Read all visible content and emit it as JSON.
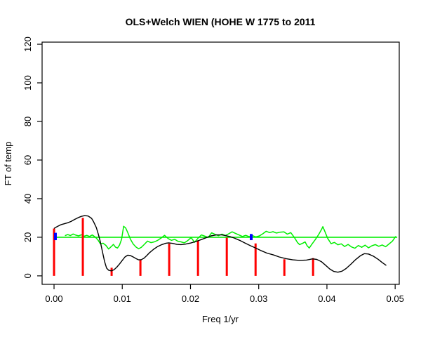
{
  "figure": {
    "background": "#ffffff"
  },
  "chart_data": {
    "type": "line",
    "title": "OLS+Welch WIEN (HOHE W 1775 to 2011",
    "xlabel": "Freq 1/yr",
    "ylabel": "FT of temp",
    "xlim": [
      -0.00175,
      0.0506
    ],
    "ylim": [
      -4.4,
      121.1
    ],
    "grid": false,
    "legend": null,
    "axis_color": "#000000",
    "x_ticks": {
      "values": [
        0,
        0.01,
        0.02,
        0.03,
        0.04,
        0.05
      ],
      "labels": [
        "0.00",
        "0.01",
        "0.02",
        "0.03",
        "0.04",
        "0.05"
      ]
    },
    "y_ticks": {
      "values": [
        0,
        20,
        40,
        60,
        80,
        100,
        120
      ],
      "labels": [
        "0",
        "20",
        "40",
        "60",
        "80",
        "100",
        "120"
      ]
    },
    "series": [
      {
        "name": "reference-level-line",
        "label": "constant level 20 (green)",
        "type": "line",
        "color": "#00EE00",
        "width": 1.6,
        "points": [
          [
            0.0,
            20.0
          ],
          [
            0.0503,
            20.0
          ]
        ]
      },
      {
        "name": "noise-spectrum-line",
        "label": "noisy green spectrum",
        "type": "line",
        "color": "#00EE00",
        "width": 1.5,
        "points": [
          [
            0.0016,
            20.8
          ],
          [
            0.002,
            21.4
          ],
          [
            0.0024,
            20.9
          ],
          [
            0.0028,
            21.7
          ],
          [
            0.0032,
            21.1
          ],
          [
            0.0036,
            20.7
          ],
          [
            0.004,
            21.3
          ],
          [
            0.0044,
            20.5
          ],
          [
            0.0048,
            21.0
          ],
          [
            0.0052,
            20.4
          ],
          [
            0.0056,
            21.2
          ],
          [
            0.006,
            20.2
          ],
          [
            0.0064,
            18.8
          ],
          [
            0.0068,
            16.6
          ],
          [
            0.0072,
            16.9
          ],
          [
            0.0076,
            15.8
          ],
          [
            0.008,
            13.9
          ],
          [
            0.0084,
            15.2
          ],
          [
            0.0087,
            16.3
          ],
          [
            0.009,
            14.9
          ],
          [
            0.0093,
            14.4
          ],
          [
            0.0096,
            16.0
          ],
          [
            0.0099,
            19.0
          ],
          [
            0.0102,
            25.7
          ],
          [
            0.0105,
            24.8
          ],
          [
            0.0108,
            22.5
          ],
          [
            0.0112,
            19.0
          ],
          [
            0.0116,
            16.5
          ],
          [
            0.012,
            15.0
          ],
          [
            0.0124,
            14.0
          ],
          [
            0.0128,
            14.8
          ],
          [
            0.0132,
            16.2
          ],
          [
            0.0137,
            18.0
          ],
          [
            0.0142,
            17.2
          ],
          [
            0.0147,
            17.6
          ],
          [
            0.0152,
            18.4
          ],
          [
            0.0157,
            19.6
          ],
          [
            0.0162,
            21.0
          ],
          [
            0.0167,
            19.4
          ],
          [
            0.0172,
            18.4
          ],
          [
            0.0177,
            18.9
          ],
          [
            0.0181,
            18.0
          ],
          [
            0.0186,
            17.6
          ],
          [
            0.0191,
            17.1
          ],
          [
            0.0196,
            18.3
          ],
          [
            0.0201,
            19.8
          ],
          [
            0.0206,
            17.4
          ],
          [
            0.0211,
            19.5
          ],
          [
            0.0216,
            21.2
          ],
          [
            0.0221,
            20.6
          ],
          [
            0.0226,
            19.9
          ],
          [
            0.0231,
            22.3
          ],
          [
            0.0236,
            21.5
          ],
          [
            0.0241,
            20.8
          ],
          [
            0.0246,
            21.6
          ],
          [
            0.0251,
            20.9
          ],
          [
            0.0256,
            21.8
          ],
          [
            0.0261,
            22.8
          ],
          [
            0.0266,
            22.0
          ],
          [
            0.0271,
            21.2
          ],
          [
            0.0276,
            20.4
          ],
          [
            0.0281,
            21.0
          ],
          [
            0.0286,
            20.3
          ],
          [
            0.0291,
            20.8
          ],
          [
            0.0296,
            20.2
          ],
          [
            0.0301,
            20.7
          ],
          [
            0.0306,
            21.8
          ],
          [
            0.0311,
            23.1
          ],
          [
            0.0316,
            22.4
          ],
          [
            0.0321,
            22.9
          ],
          [
            0.0326,
            22.2
          ],
          [
            0.0331,
            22.6
          ],
          [
            0.0337,
            22.8
          ],
          [
            0.0342,
            21.6
          ],
          [
            0.0347,
            22.4
          ],
          [
            0.0352,
            20.0
          ],
          [
            0.0357,
            17.2
          ],
          [
            0.036,
            16.2
          ],
          [
            0.0365,
            17.0
          ],
          [
            0.0368,
            17.6
          ],
          [
            0.0371,
            15.6
          ],
          [
            0.0374,
            14.4
          ],
          [
            0.0378,
            16.4
          ],
          [
            0.0383,
            18.8
          ],
          [
            0.0388,
            21.5
          ],
          [
            0.0392,
            24.0
          ],
          [
            0.0394,
            25.5
          ],
          [
            0.0397,
            23.0
          ],
          [
            0.0401,
            19.5
          ],
          [
            0.0406,
            16.7
          ],
          [
            0.0411,
            17.3
          ],
          [
            0.0416,
            16.1
          ],
          [
            0.0421,
            16.6
          ],
          [
            0.0426,
            15.2
          ],
          [
            0.0431,
            16.3
          ],
          [
            0.0436,
            15.0
          ],
          [
            0.0441,
            14.3
          ],
          [
            0.0446,
            15.7
          ],
          [
            0.0451,
            14.8
          ],
          [
            0.0456,
            15.9
          ],
          [
            0.0461,
            14.5
          ],
          [
            0.0466,
            15.6
          ],
          [
            0.0471,
            16.2
          ],
          [
            0.0476,
            15.3
          ],
          [
            0.0481,
            16.0
          ],
          [
            0.0486,
            15.1
          ],
          [
            0.0491,
            16.5
          ],
          [
            0.0496,
            18.0
          ],
          [
            0.0501,
            20.5
          ]
        ]
      },
      {
        "name": "fourier-peak-spikes",
        "label": "red spikes at Fourier frequencies k/237",
        "type": "vlines",
        "color": "#FF0000",
        "width": 3,
        "baseline": 0,
        "points": [
          [
            0.0,
            24.5
          ],
          [
            0.00422,
            30.0
          ],
          [
            0.00844,
            4.2
          ],
          [
            0.01266,
            8.3
          ],
          [
            0.01688,
            16.7
          ],
          [
            0.0211,
            18.4
          ],
          [
            0.02532,
            19.8
          ],
          [
            0.02954,
            16.8
          ],
          [
            0.03376,
            8.6
          ],
          [
            0.03797,
            9.2
          ]
        ]
      },
      {
        "name": "welch-spectrum-line",
        "label": "smoothed Welch spectrum (black)",
        "type": "line",
        "color": "#000000",
        "width": 1.4,
        "points": [
          [
            0.0,
            24.6
          ],
          [
            0.0005,
            25.6
          ],
          [
            0.001,
            26.5
          ],
          [
            0.0015,
            27.0
          ],
          [
            0.002,
            27.5
          ],
          [
            0.0025,
            28.2
          ],
          [
            0.003,
            29.2
          ],
          [
            0.0035,
            30.1
          ],
          [
            0.004,
            30.8
          ],
          [
            0.0045,
            31.2
          ],
          [
            0.005,
            31.0
          ],
          [
            0.0055,
            29.8
          ],
          [
            0.0058,
            28.0
          ],
          [
            0.0062,
            25.0
          ],
          [
            0.0065,
            21.5
          ],
          [
            0.0068,
            17.5
          ],
          [
            0.0071,
            12.5
          ],
          [
            0.0074,
            7.5
          ],
          [
            0.0077,
            4.0
          ],
          [
            0.008,
            2.9
          ],
          [
            0.0084,
            2.6
          ],
          [
            0.0088,
            3.2
          ],
          [
            0.0092,
            4.5
          ],
          [
            0.0096,
            6.2
          ],
          [
            0.01,
            8.0
          ],
          [
            0.0104,
            9.8
          ],
          [
            0.0108,
            10.7
          ],
          [
            0.0112,
            10.5
          ],
          [
            0.0116,
            9.8
          ],
          [
            0.012,
            9.0
          ],
          [
            0.0124,
            8.3
          ],
          [
            0.0128,
            8.4
          ],
          [
            0.0132,
            9.2
          ],
          [
            0.0136,
            10.5
          ],
          [
            0.014,
            12.0
          ],
          [
            0.0146,
            13.8
          ],
          [
            0.0152,
            15.2
          ],
          [
            0.0158,
            16.2
          ],
          [
            0.0164,
            16.9
          ],
          [
            0.0168,
            17.1
          ],
          [
            0.0174,
            16.8
          ],
          [
            0.018,
            16.3
          ],
          [
            0.0186,
            16.2
          ],
          [
            0.0192,
            16.4
          ],
          [
            0.02,
            17.0
          ],
          [
            0.0208,
            17.8
          ],
          [
            0.0216,
            18.8
          ],
          [
            0.0224,
            19.9
          ],
          [
            0.023,
            20.7
          ],
          [
            0.0238,
            21.2
          ],
          [
            0.0246,
            21.2
          ],
          [
            0.0252,
            20.8
          ],
          [
            0.0258,
            20.3
          ],
          [
            0.0264,
            19.6
          ],
          [
            0.0272,
            18.4
          ],
          [
            0.028,
            17.0
          ],
          [
            0.0288,
            15.6
          ],
          [
            0.0295,
            14.5
          ],
          [
            0.0304,
            13.0
          ],
          [
            0.0312,
            11.8
          ],
          [
            0.0322,
            10.8
          ],
          [
            0.033,
            9.8
          ],
          [
            0.034,
            8.9
          ],
          [
            0.035,
            8.3
          ],
          [
            0.036,
            8.0
          ],
          [
            0.037,
            8.2
          ],
          [
            0.0379,
            8.8
          ],
          [
            0.0385,
            8.5
          ],
          [
            0.0392,
            7.3
          ],
          [
            0.0398,
            5.5
          ],
          [
            0.0404,
            3.6
          ],
          [
            0.041,
            2.3
          ],
          [
            0.0416,
            1.9
          ],
          [
            0.0422,
            2.4
          ],
          [
            0.0428,
            3.8
          ],
          [
            0.0435,
            6.0
          ],
          [
            0.0442,
            8.4
          ],
          [
            0.0449,
            10.4
          ],
          [
            0.0455,
            11.5
          ],
          [
            0.0461,
            11.3
          ],
          [
            0.0468,
            10.2
          ],
          [
            0.0475,
            8.6
          ],
          [
            0.0481,
            6.9
          ],
          [
            0.0487,
            5.4
          ]
        ]
      },
      {
        "name": "frequency-marker-ticks",
        "label": "blue marker ticks",
        "type": "segments",
        "color": "#0000FF",
        "width": 4,
        "segments": [
          [
            0.0002,
            18.5,
            22.3
          ],
          [
            0.0289,
            18.5,
            21.7
          ]
        ]
      }
    ]
  }
}
